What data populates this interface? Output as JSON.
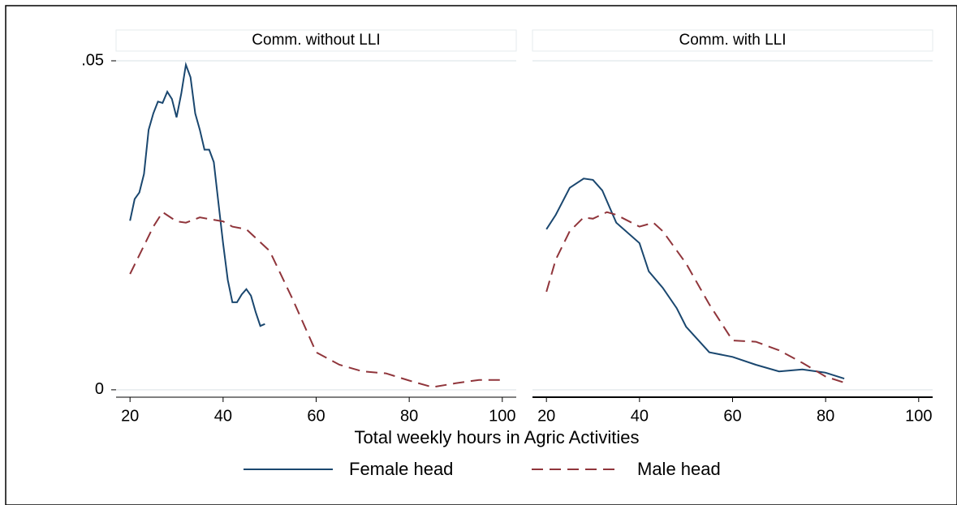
{
  "chart_data": [
    {
      "type": "line",
      "title": "Comm. without LLI",
      "xlabel": "Total weekly hours in Agric Activities",
      "xlim": [
        17,
        103
      ],
      "xticks": [
        20,
        40,
        60,
        80,
        100
      ],
      "ylim": [
        -0.001,
        0.05
      ],
      "yticks": [
        0,
        {
          "value": 0.05,
          "label": ".05"
        }
      ],
      "grid": true,
      "series": [
        {
          "name": "Female head",
          "color": "#1a476f",
          "dash": "solid",
          "x": [
            20,
            21,
            22,
            23,
            24,
            25,
            26,
            27,
            28,
            29,
            30,
            31,
            32,
            33,
            34,
            35,
            36,
            37,
            38,
            39,
            40,
            41,
            42,
            43,
            44,
            45,
            46,
            47,
            48,
            49
          ],
          "values": [
            0.0257,
            0.029,
            0.03,
            0.0328,
            0.0395,
            0.042,
            0.0438,
            0.0436,
            0.0453,
            0.0442,
            0.0414,
            0.045,
            0.0494,
            0.0475,
            0.042,
            0.0395,
            0.0365,
            0.0365,
            0.0346,
            0.0284,
            0.0223,
            0.0167,
            0.0133,
            0.0133,
            0.0145,
            0.0153,
            0.0143,
            0.0118,
            0.0097,
            0.01
          ]
        },
        {
          "name": "Male head",
          "color": "#90353b",
          "dash": "dashed",
          "x": [
            20,
            25,
            27,
            30,
            32,
            35,
            40,
            42,
            45,
            50,
            55,
            60,
            65,
            70,
            75,
            80,
            85,
            90,
            95,
            100
          ],
          "values": [
            0.0176,
            0.0248,
            0.027,
            0.0256,
            0.0254,
            0.0262,
            0.0256,
            0.0248,
            0.0244,
            0.0211,
            0.0137,
            0.0057,
            0.0038,
            0.0028,
            0.0025,
            0.0014,
            0.0004,
            0.001,
            0.0015,
            0.0015
          ]
        }
      ]
    },
    {
      "type": "line",
      "title": "Comm. with LLI",
      "xlim": [
        17,
        103
      ],
      "xticks": [
        20,
        40,
        60,
        80,
        100
      ],
      "ylim": [
        -0.001,
        0.05
      ],
      "yticks": [
        0,
        0.05
      ],
      "grid": true,
      "series": [
        {
          "name": "Female head",
          "color": "#1a476f",
          "dash": "solid",
          "x": [
            20,
            22,
            25,
            28,
            30,
            32,
            35,
            40,
            42,
            45,
            48,
            50,
            55,
            60,
            65,
            70,
            75,
            80,
            84
          ],
          "values": [
            0.0244,
            0.0266,
            0.0307,
            0.0321,
            0.0319,
            0.0303,
            0.0254,
            0.0223,
            0.018,
            0.0155,
            0.0124,
            0.0096,
            0.0057,
            0.005,
            0.0038,
            0.0028,
            0.0031,
            0.0026,
            0.0017
          ]
        },
        {
          "name": "Male head",
          "color": "#90353b",
          "dash": "dashed",
          "x": [
            20,
            22,
            25,
            28,
            30,
            33,
            35,
            40,
            43,
            45,
            50,
            55,
            60,
            65,
            70,
            75,
            80,
            84
          ],
          "values": [
            0.0149,
            0.0198,
            0.0241,
            0.0262,
            0.026,
            0.027,
            0.0266,
            0.0248,
            0.0254,
            0.0241,
            0.0192,
            0.013,
            0.0075,
            0.0073,
            0.006,
            0.0041,
            0.002,
            0.0011
          ]
        }
      ]
    }
  ]
}
